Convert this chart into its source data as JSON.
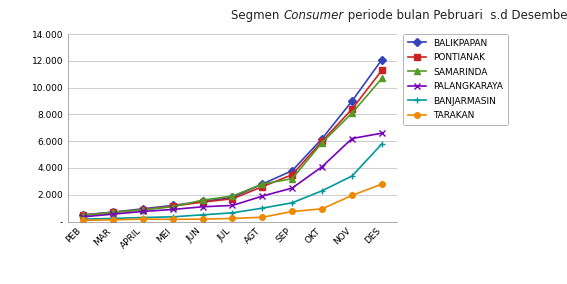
{
  "months": [
    "PEB",
    "MAR",
    "APRIL",
    "MEI",
    "JUN",
    "JUL",
    "AGT",
    "SEP",
    "OKT",
    "NOV",
    "DES"
  ],
  "series": {
    "BALIKPAPAN": [
      500,
      700,
      950,
      1200,
      1500,
      1800,
      2800,
      3800,
      6200,
      9000,
      12100
    ],
    "PONTIANAK": [
      470,
      680,
      880,
      1150,
      1450,
      1700,
      2600,
      3500,
      6000,
      8400,
      11300
    ],
    "SAMARINDA": [
      450,
      700,
      880,
      1100,
      1600,
      1900,
      2800,
      3200,
      5900,
      8100,
      10700
    ],
    "PALANGKARAYA": [
      350,
      550,
      750,
      900,
      1100,
      1200,
      1900,
      2500,
      4100,
      6200,
      6600
    ],
    "BANJARMASIN": [
      180,
      230,
      300,
      350,
      500,
      650,
      1000,
      1400,
      2300,
      3400,
      5800
    ],
    "TARAKAN": [
      80,
      130,
      180,
      160,
      180,
      230,
      320,
      750,
      950,
      1950,
      2800
    ]
  },
  "colors": {
    "BALIKPAPAN": "#3344BB",
    "PONTIANAK": "#CC2222",
    "SAMARINDA": "#559922",
    "PALANGKARAYA": "#7700BB",
    "BANJARMASIN": "#009999",
    "TARAKAN": "#EE8800"
  },
  "markers": {
    "BALIKPAPAN": "D",
    "PONTIANAK": "s",
    "SAMARINDA": "^",
    "PALANGKARAYA": "x",
    "BANJARMASIN": "+",
    "TARAKAN": "o"
  },
  "ylim": [
    0,
    14000
  ],
  "yticks": [
    0,
    2000,
    4000,
    6000,
    8000,
    10000,
    12000,
    14000
  ],
  "ytick_labels": [
    "-",
    "2.000",
    "4.000",
    "6.000",
    "8.000",
    "10.000",
    "12.000",
    "14.000"
  ],
  "background_color": "#FFFFFF",
  "grid_color": "#BBBBBB",
  "legend_fontsize": 6.5,
  "axis_fontsize": 6.5,
  "title_fontsize": 8.5,
  "linewidth": 1.2,
  "markersize": 4
}
